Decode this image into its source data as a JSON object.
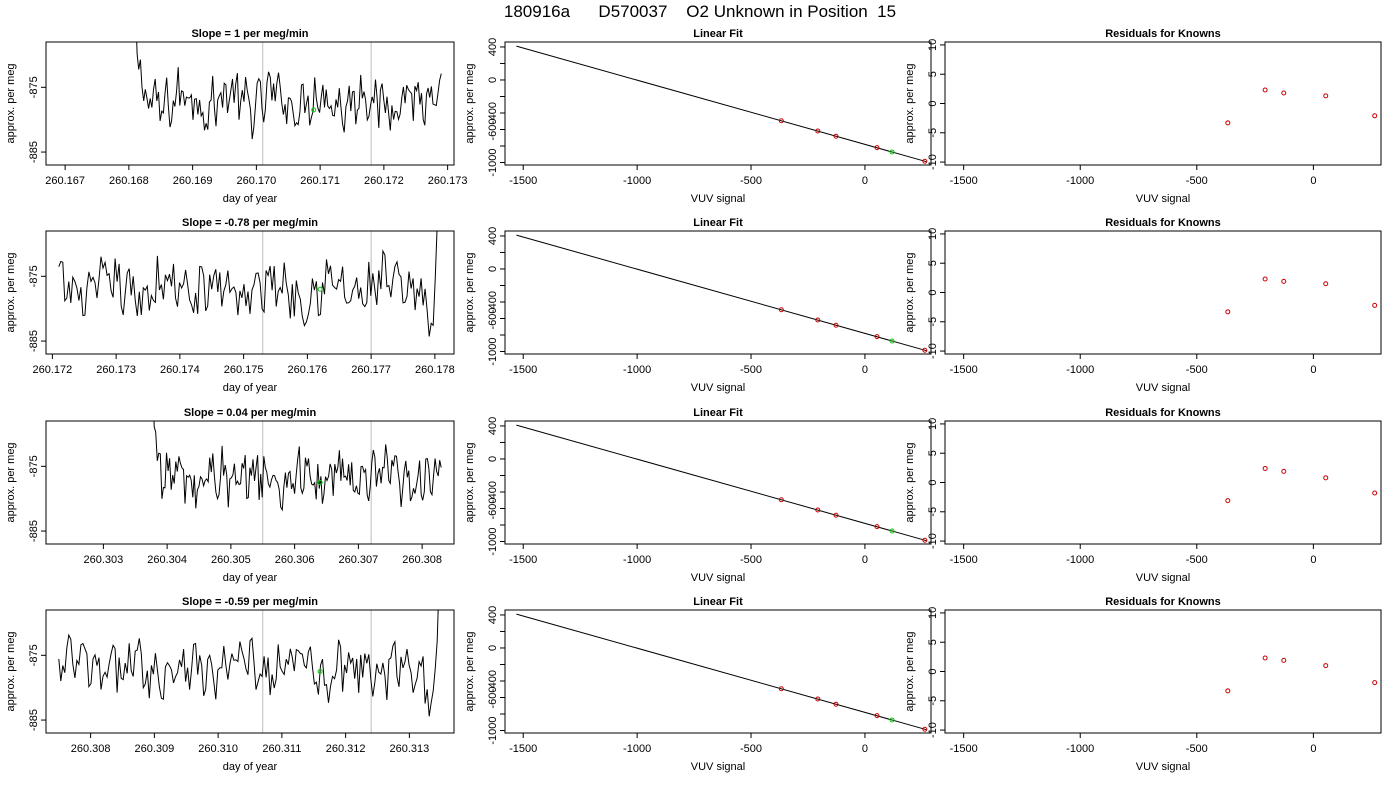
{
  "figure": {
    "title": "180916a      D570037    O2 Unknown in Position  15"
  },
  "colors": {
    "line": "#000000",
    "guide": "#bebebe",
    "known_points": "#cc0000",
    "unknown_point": "#00cc00"
  },
  "chart_data": [
    {
      "type": "line",
      "title": "Slope =  1  per meg/min",
      "xlabel": "day of year",
      "ylabel": "approx. per meg",
      "xlim": [
        260.1667,
        260.1731
      ],
      "ylim": [
        -887,
        -868
      ],
      "xticks": [
        260.167,
        260.168,
        260.169,
        260.17,
        260.171,
        260.172,
        260.173
      ],
      "xtick_labels": [
        "260.167",
        "260.168",
        "260.169",
        "260.170",
        "260.171",
        "260.172",
        "260.173"
      ],
      "yticks": [
        -885,
        -875
      ],
      "ytick_labels": [
        "-885",
        "-875"
      ],
      "vlines": [
        260.1701,
        260.1718
      ],
      "marker": {
        "x": 260.1709,
        "y": -878.5
      },
      "trace_start": 260.168,
      "trace_end": 260.1729,
      "spike_at": "start"
    },
    {
      "type": "line",
      "title": "Slope =  -0.78  per meg/min",
      "xlabel": "day of year",
      "ylabel": "approx. per meg",
      "xlim": [
        260.1719,
        260.1783
      ],
      "ylim": [
        -887,
        -868
      ],
      "xticks": [
        260.172,
        260.173,
        260.174,
        260.175,
        260.176,
        260.177,
        260.178
      ],
      "xtick_labels": [
        "260.172",
        "260.173",
        "260.174",
        "260.175",
        "260.176",
        "260.177",
        "260.178"
      ],
      "yticks": [
        -885,
        -875
      ],
      "ytick_labels": [
        "-885",
        "-875"
      ],
      "vlines": [
        260.1753,
        260.177
      ],
      "marker": {
        "x": 260.1762,
        "y": -877
      },
      "trace_start": 260.1721,
      "trace_end": 260.1781,
      "spike_at": "end"
    },
    {
      "type": "line",
      "title": "Slope =  0.04  per meg/min",
      "xlabel": "day of year",
      "ylabel": "approx. per meg",
      "xlim": [
        260.3021,
        260.3085
      ],
      "ylim": [
        -887,
        -868
      ],
      "xticks": [
        260.303,
        260.304,
        260.305,
        260.306,
        260.307,
        260.308
      ],
      "xtick_labels": [
        "260.303",
        "260.304",
        "260.305",
        "260.306",
        "260.307",
        "260.308"
      ],
      "yticks": [
        -885,
        -875
      ],
      "ytick_labels": [
        "-885",
        "-875"
      ],
      "vlines": [
        260.3055,
        260.3072
      ],
      "marker": {
        "x": 260.3064,
        "y": -877.5
      },
      "trace_start": 260.3037,
      "trace_end": 260.3083,
      "spike_at": "start"
    },
    {
      "type": "line",
      "title": "Slope =  -0.59  per meg/min",
      "xlabel": "day of year",
      "ylabel": "approx. per meg",
      "xlim": [
        260.3073,
        260.3137
      ],
      "ylim": [
        -887,
        -868
      ],
      "xticks": [
        260.308,
        260.309,
        260.31,
        260.311,
        260.312,
        260.313
      ],
      "xtick_labels": [
        "260.308",
        "260.309",
        "260.310",
        "260.311",
        "260.312",
        "260.313"
      ],
      "yticks": [
        -885,
        -875
      ],
      "ytick_labels": [
        "-885",
        "-875"
      ],
      "vlines": [
        260.3107,
        260.3124
      ],
      "marker": {
        "x": 260.3116,
        "y": -877.5
      },
      "trace_start": 260.3075,
      "trace_end": 260.3135,
      "spike_at": "end"
    },
    {
      "type": "scatter",
      "title": "Linear Fit",
      "xlabel": "VUV signal",
      "ylabel": "approx. per meg",
      "xlim": [
        -1580,
        290
      ],
      "ylim": [
        -1030,
        460
      ],
      "xticks": [
        -1500,
        -1000,
        -500,
        0
      ],
      "xtick_labels": [
        "-1500",
        "-1000",
        "-500",
        "0"
      ],
      "yticks": [
        -1000,
        -800,
        -600,
        -400,
        -200,
        0,
        200,
        400
      ],
      "ytick_labels": [
        "-1000",
        "",
        "-600",
        "-400",
        "",
        "0",
        "",
        "400"
      ],
      "fit_line": [
        [
          -1530,
          410
        ],
        [
          270,
          -990
        ]
      ],
      "known_points": [
        [
          -367,
          -494
        ],
        [
          -207,
          -618
        ],
        [
          -127,
          -682
        ],
        [
          53,
          -820
        ],
        [
          263,
          -985
        ]
      ],
      "unknown_point": [
        119,
        -872
      ]
    },
    {
      "type": "scatter",
      "title": "Linear Fit",
      "xlabel": "VUV signal",
      "ylabel": "approx. per meg",
      "xlim": [
        -1580,
        290
      ],
      "ylim": [
        -1030,
        460
      ],
      "xticks": [
        -1500,
        -1000,
        -500,
        0
      ],
      "xtick_labels": [
        "-1500",
        "-1000",
        "-500",
        "0"
      ],
      "yticks": [
        -1000,
        -800,
        -600,
        -400,
        -200,
        0,
        200,
        400
      ],
      "ytick_labels": [
        "-1000",
        "",
        "-600",
        "-400",
        "",
        "0",
        "",
        "400"
      ],
      "fit_line": [
        [
          -1530,
          410
        ],
        [
          270,
          -990
        ]
      ],
      "known_points": [
        [
          -367,
          -494
        ],
        [
          -207,
          -618
        ],
        [
          -127,
          -682
        ],
        [
          53,
          -820
        ],
        [
          263,
          -985
        ]
      ],
      "unknown_point": [
        119,
        -872
      ]
    },
    {
      "type": "scatter",
      "title": "Linear Fit",
      "xlabel": "VUV signal",
      "ylabel": "approx. per meg",
      "xlim": [
        -1580,
        290
      ],
      "ylim": [
        -1030,
        460
      ],
      "xticks": [
        -1500,
        -1000,
        -500,
        0
      ],
      "xtick_labels": [
        "-1500",
        "-1000",
        "-500",
        "0"
      ],
      "yticks": [
        -1000,
        -800,
        -600,
        -400,
        -200,
        0,
        200,
        400
      ],
      "ytick_labels": [
        "-1000",
        "",
        "-600",
        "-400",
        "",
        "0",
        "",
        "400"
      ],
      "fit_line": [
        [
          -1530,
          410
        ],
        [
          270,
          -990
        ]
      ],
      "known_points": [
        [
          -367,
          -494
        ],
        [
          -207,
          -618
        ],
        [
          -127,
          -682
        ],
        [
          53,
          -820
        ],
        [
          263,
          -985
        ]
      ],
      "unknown_point": [
        119,
        -872
      ]
    },
    {
      "type": "scatter",
      "title": "Linear Fit",
      "xlabel": "VUV signal",
      "ylabel": "approx. per meg",
      "xlim": [
        -1580,
        290
      ],
      "ylim": [
        -1030,
        460
      ],
      "xticks": [
        -1500,
        -1000,
        -500,
        0
      ],
      "xtick_labels": [
        "-1500",
        "-1000",
        "-500",
        "0"
      ],
      "yticks": [
        -1000,
        -800,
        -600,
        -400,
        -200,
        0,
        200,
        400
      ],
      "ytick_labels": [
        "-1000",
        "",
        "-600",
        "-400",
        "",
        "0",
        "",
        "400"
      ],
      "fit_line": [
        [
          -1530,
          410
        ],
        [
          270,
          -990
        ]
      ],
      "known_points": [
        [
          -367,
          -494
        ],
        [
          -207,
          -618
        ],
        [
          -127,
          -682
        ],
        [
          53,
          -820
        ],
        [
          263,
          -985
        ]
      ],
      "unknown_point": [
        119,
        -872
      ]
    },
    {
      "type": "scatter",
      "title": "Residuals for Knowns",
      "xlabel": "VUV signal",
      "ylabel": "approx. per meg",
      "xlim": [
        -1580,
        290
      ],
      "ylim": [
        -10.5,
        10.5
      ],
      "xticks": [
        -1500,
        -1000,
        -500,
        0
      ],
      "xtick_labels": [
        "-1500",
        "-1000",
        "-500",
        "0"
      ],
      "yticks": [
        -10,
        -5,
        0,
        5,
        10
      ],
      "ytick_labels": [
        "-10",
        "-5",
        "0",
        "5",
        "10"
      ],
      "points": [
        [
          -367,
          -3.3
        ],
        [
          -207,
          2.3
        ],
        [
          -127,
          1.8
        ],
        [
          53,
          1.3
        ],
        [
          263,
          -2.1
        ]
      ]
    },
    {
      "type": "scatter",
      "title": "Residuals for Knowns",
      "xlabel": "VUV signal",
      "ylabel": "approx. per meg",
      "xlim": [
        -1580,
        290
      ],
      "ylim": [
        -10.5,
        10.5
      ],
      "xticks": [
        -1500,
        -1000,
        -500,
        0
      ],
      "xtick_labels": [
        "-1500",
        "-1000",
        "-500",
        "0"
      ],
      "yticks": [
        -10,
        -5,
        0,
        5,
        10
      ],
      "ytick_labels": [
        "-10",
        "-5",
        "0",
        "5",
        "10"
      ],
      "points": [
        [
          -367,
          -3.3
        ],
        [
          -207,
          2.3
        ],
        [
          -127,
          1.9
        ],
        [
          53,
          1.5
        ],
        [
          263,
          -2.2
        ]
      ]
    },
    {
      "type": "scatter",
      "title": "Residuals for Knowns",
      "xlabel": "VUV signal",
      "ylabel": "approx. per meg",
      "xlim": [
        -1580,
        290
      ],
      "ylim": [
        -10.5,
        10.5
      ],
      "xticks": [
        -1500,
        -1000,
        -500,
        0
      ],
      "xtick_labels": [
        "-1500",
        "-1000",
        "-500",
        "0"
      ],
      "yticks": [
        -10,
        -5,
        0,
        5,
        10
      ],
      "ytick_labels": [
        "-10",
        "-5",
        "0",
        "5",
        "10"
      ],
      "points": [
        [
          -367,
          -3.1
        ],
        [
          -207,
          2.4
        ],
        [
          -127,
          1.9
        ],
        [
          53,
          0.8
        ],
        [
          263,
          -1.8
        ]
      ]
    },
    {
      "type": "scatter",
      "title": "Residuals for Knowns",
      "xlabel": "VUV signal",
      "ylabel": "approx. per meg",
      "xlim": [
        -1580,
        290
      ],
      "ylim": [
        -10.5,
        10.5
      ],
      "xticks": [
        -1500,
        -1000,
        -500,
        0
      ],
      "xtick_labels": [
        "-1500",
        "-1000",
        "-500",
        "0"
      ],
      "yticks": [
        -10,
        -5,
        0,
        5,
        10
      ],
      "ytick_labels": [
        "-10",
        "-5",
        "0",
        "5",
        "10"
      ],
      "points": [
        [
          -367,
          -3.3
        ],
        [
          -207,
          2.3
        ],
        [
          -127,
          1.9
        ],
        [
          53,
          1.0
        ],
        [
          263,
          -1.9
        ]
      ]
    }
  ]
}
